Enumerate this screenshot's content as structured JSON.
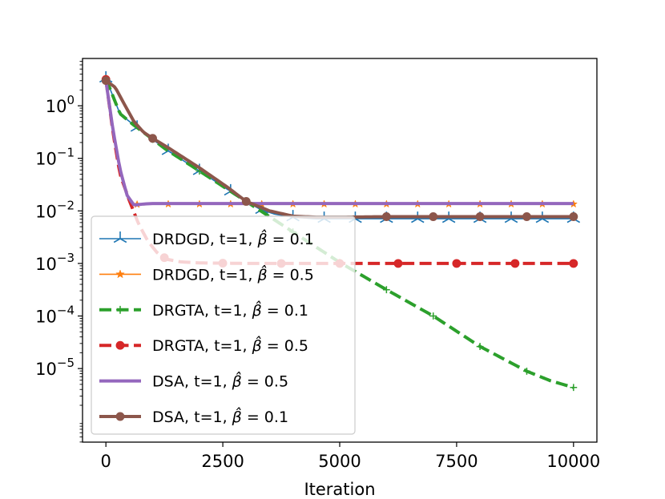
{
  "chart_data": {
    "type": "line",
    "title": "",
    "xlabel": "Iteration",
    "ylabel": "",
    "yscale": "log",
    "xlim": [
      -500,
      10500
    ],
    "ylim_log10": [
      -6.4,
      0.9
    ],
    "x_ticks": [
      0,
      2500,
      5000,
      7500,
      10000
    ],
    "x_tick_labels": [
      "0",
      "2500",
      "5000",
      "7500",
      "10000"
    ],
    "y_ticks_exp": [
      0,
      -1,
      -2,
      -3,
      -4,
      -5
    ],
    "y_tick_labels": [
      {
        "base": "10",
        "exp": "0"
      },
      {
        "base": "10",
        "exp": "−1"
      },
      {
        "base": "10",
        "exp": "−2"
      },
      {
        "base": "10",
        "exp": "−3"
      },
      {
        "base": "10",
        "exp": "−4"
      },
      {
        "base": "10",
        "exp": "−5"
      }
    ],
    "legend_position": "lower-left",
    "series": [
      {
        "name": "DRDGD, t=1, β̂=0.1",
        "label_parts": {
          "prefix": "DRDGD, t=1, ",
          "symbol": "β̂",
          "eq": " = ",
          "value": "0.1"
        },
        "color": "#1f77b4",
        "style": "solid",
        "width": 1.6,
        "marker": "tri",
        "x": [
          0,
          300,
          600,
          1300,
          2000,
          2600,
          3000,
          3300,
          3600,
          4000,
          4500,
          5000,
          6000,
          7000,
          8000,
          9000,
          10000
        ],
        "log10_y": [
          0.52,
          -0.15,
          -0.37,
          -0.84,
          -1.24,
          -1.59,
          -1.82,
          -1.97,
          -2.06,
          -2.12,
          -2.15,
          -2.15,
          -2.15,
          -2.15,
          -2.15,
          -2.15,
          -2.15
        ],
        "marker_x": [
          0,
          667,
          1333,
          2000,
          2667,
          3333,
          4000,
          4667,
          5333,
          6000,
          6667,
          7333,
          8000,
          8667,
          9333,
          10000
        ]
      },
      {
        "name": "DRDGD, t=1, β̂=0.5",
        "label_parts": {
          "prefix": "DRDGD, t=1, ",
          "symbol": "β̂",
          "eq": " = ",
          "value": "0.5"
        },
        "color": "#ff7f0e",
        "style": "solid",
        "width": 1.6,
        "marker": "star",
        "x": [
          0,
          150,
          300,
          450,
          600,
          800,
          1000,
          2000,
          4000,
          6000,
          8000,
          10000
        ],
        "log10_y": [
          0.5,
          -0.45,
          -1.2,
          -1.7,
          -1.88,
          -1.87,
          -1.87,
          -1.87,
          -1.87,
          -1.87,
          -1.87,
          -1.87
        ],
        "marker_x": [
          0,
          667,
          1333,
          2000,
          2667,
          3333,
          4000,
          4667,
          5333,
          6000,
          6667,
          7333,
          8000,
          8667,
          9333,
          10000
        ]
      },
      {
        "name": "DRGTA, t=1, β̂=0.1",
        "label_parts": {
          "prefix": "DRGTA, t=1, ",
          "symbol": "β̂",
          "eq": " = ",
          "value": "0.1"
        },
        "color": "#2ca02c",
        "style": "dashed",
        "width": 4,
        "marker": "plus",
        "x": [
          0,
          300,
          600,
          1300,
          2000,
          2600,
          3000,
          4000,
          5000,
          6000,
          7000,
          8000,
          9000,
          9500,
          10000
        ],
        "log10_y": [
          0.52,
          -0.15,
          -0.37,
          -0.84,
          -1.24,
          -1.59,
          -1.82,
          -2.4,
          -2.98,
          -3.5,
          -4.0,
          -4.58,
          -5.05,
          -5.23,
          -5.36
        ],
        "marker_x": [
          0,
          1000,
          2000,
          3000,
          4000,
          5000,
          6000,
          7000,
          8000,
          9000,
          10000
        ]
      },
      {
        "name": "DRGTA, t=1, β̂=0.5",
        "label_parts": {
          "prefix": "DRGTA, t=1, ",
          "symbol": "β̂",
          "eq": " = ",
          "value": "0.5"
        },
        "color": "#d62728",
        "style": "dashed",
        "width": 4,
        "marker": "circle",
        "x": [
          0,
          150,
          300,
          500,
          700,
          900,
          1100,
          1300,
          1600,
          2000,
          3000,
          4000,
          5000,
          7500,
          10000
        ],
        "log10_y": [
          0.5,
          -0.5,
          -1.3,
          -1.8,
          -2.25,
          -2.58,
          -2.8,
          -2.92,
          -2.97,
          -2.99,
          -3.0,
          -3.0,
          -3.0,
          -3.0,
          -3.0
        ],
        "marker_x": [
          0,
          1250,
          2500,
          3750,
          5000,
          6250,
          7500,
          8750,
          10000
        ]
      },
      {
        "name": "DSA, t=1, β̂=0.5",
        "label_parts": {
          "prefix": "DSA, t=1, ",
          "symbol": "β̂",
          "eq": " = ",
          "value": "0.5"
        },
        "color": "#9467bd",
        "style": "solid",
        "width": 4,
        "marker": "none",
        "x": [
          0,
          150,
          300,
          450,
          600,
          800,
          1000,
          2000,
          4000,
          6000,
          8000,
          10000
        ],
        "log10_y": [
          0.48,
          -0.45,
          -1.2,
          -1.7,
          -1.89,
          -1.87,
          -1.86,
          -1.86,
          -1.86,
          -1.86,
          -1.86,
          -1.86
        ],
        "marker_x": []
      },
      {
        "name": "DSA, t=1, β̂=0.1",
        "label_parts": {
          "prefix": "DSA, t=1, ",
          "symbol": "β̂",
          "eq": " = ",
          "value": "0.1"
        },
        "color": "#8c564b",
        "style": "solid",
        "width": 4,
        "marker": "circle",
        "x": [
          0,
          200,
          400,
          600,
          800,
          1000,
          1300,
          2000,
          2600,
          3000,
          3500,
          4000,
          4500,
          5000,
          6000,
          7000,
          8000,
          9000,
          10000
        ],
        "log10_y": [
          0.48,
          0.35,
          0.02,
          -0.3,
          -0.5,
          -0.62,
          -0.78,
          -1.18,
          -1.55,
          -1.82,
          -2.0,
          -2.1,
          -2.12,
          -2.12,
          -2.11,
          -2.11,
          -2.11,
          -2.11,
          -2.11
        ],
        "marker_x": [
          0,
          1000,
          3000,
          6000,
          7000,
          8000,
          9000,
          10000
        ]
      }
    ]
  }
}
